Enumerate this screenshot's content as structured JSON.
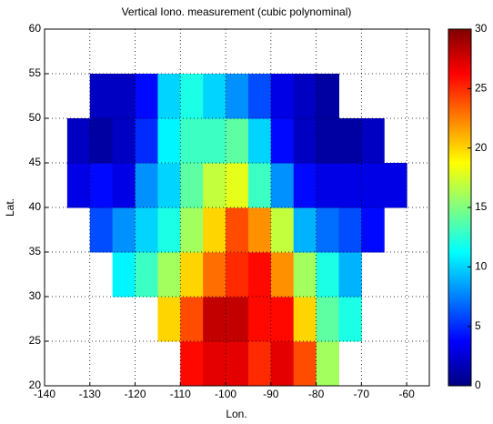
{
  "chart_data": {
    "type": "heatmap",
    "title": "Vertical Iono. measurement (cubic polynominal)",
    "x_label": "Lon.",
    "y_label": "Lat.",
    "x": [
      -132.5,
      -127.5,
      -122.5,
      -117.5,
      -112.5,
      -107.5,
      -102.5,
      -97.5,
      -92.5,
      -87.5,
      -82.5,
      -77.5,
      -72.5,
      -67.5,
      -62.5
    ],
    "y": [
      22.5,
      27.5,
      32.5,
      37.5,
      42.5,
      47.5,
      52.5
    ],
    "values": [
      [
        null,
        null,
        null,
        null,
        null,
        26,
        27,
        27,
        25,
        27,
        24,
        16,
        null,
        null,
        null
      ],
      [
        null,
        null,
        null,
        null,
        20,
        24,
        28,
        28,
        26,
        26,
        20,
        14,
        12,
        null,
        null
      ],
      [
        null,
        null,
        11,
        13,
        16,
        20,
        23,
        25,
        26,
        22,
        16,
        12,
        9,
        null,
        null
      ],
      [
        null,
        6,
        8,
        10,
        12,
        16,
        20,
        24,
        22,
        17,
        9,
        7,
        6,
        4,
        null
      ],
      [
        3,
        4,
        3,
        8,
        10,
        14,
        17,
        18,
        13,
        8,
        4,
        3,
        3,
        3,
        3
      ],
      [
        2,
        1,
        2,
        5,
        11,
        13,
        13,
        14,
        10,
        4,
        2,
        1,
        1,
        2,
        null
      ],
      [
        null,
        2,
        2,
        4,
        10,
        12,
        10,
        8,
        6,
        3,
        2,
        1,
        null,
        null,
        null
      ]
    ],
    "colormap": "jet",
    "xlim": [
      -140,
      -55
    ],
    "xticks": [
      -140,
      -130,
      -120,
      -110,
      -100,
      -90,
      -80,
      -70,
      -60
    ],
    "ylim": [
      20,
      60
    ],
    "yticks": [
      20,
      25,
      30,
      35,
      40,
      45,
      50,
      55,
      60
    ],
    "clim": [
      0,
      30
    ],
    "cticks": [
      0,
      5,
      10,
      15,
      20,
      25,
      30
    ],
    "grid": true
  }
}
